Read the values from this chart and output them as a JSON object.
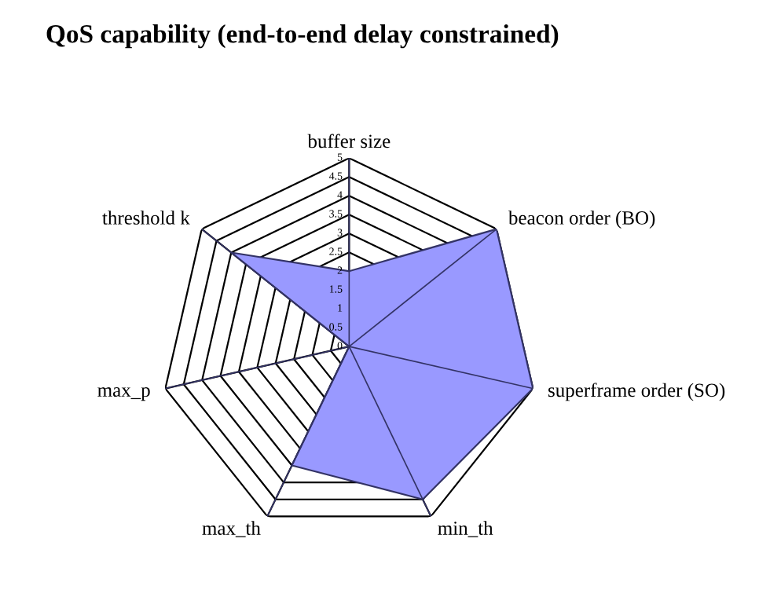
{
  "chart_data": {
    "type": "radar",
    "title": "QoS capability (end-to-end delay constrained)",
    "categories": [
      "buffer size",
      "beacon order (BO)",
      "superframe order (SO)",
      "min_th",
      "max_th",
      "max_p",
      "threshold k"
    ],
    "series": [
      {
        "color": "#9999ff",
        "values": [
          2,
          5,
          5,
          4.5,
          3.5,
          0,
          4
        ]
      }
    ],
    "ylim": [
      0,
      5
    ],
    "yticks": [
      0,
      0.5,
      1,
      1.5,
      2,
      2.5,
      3,
      3.5,
      4,
      4.5,
      5
    ]
  }
}
